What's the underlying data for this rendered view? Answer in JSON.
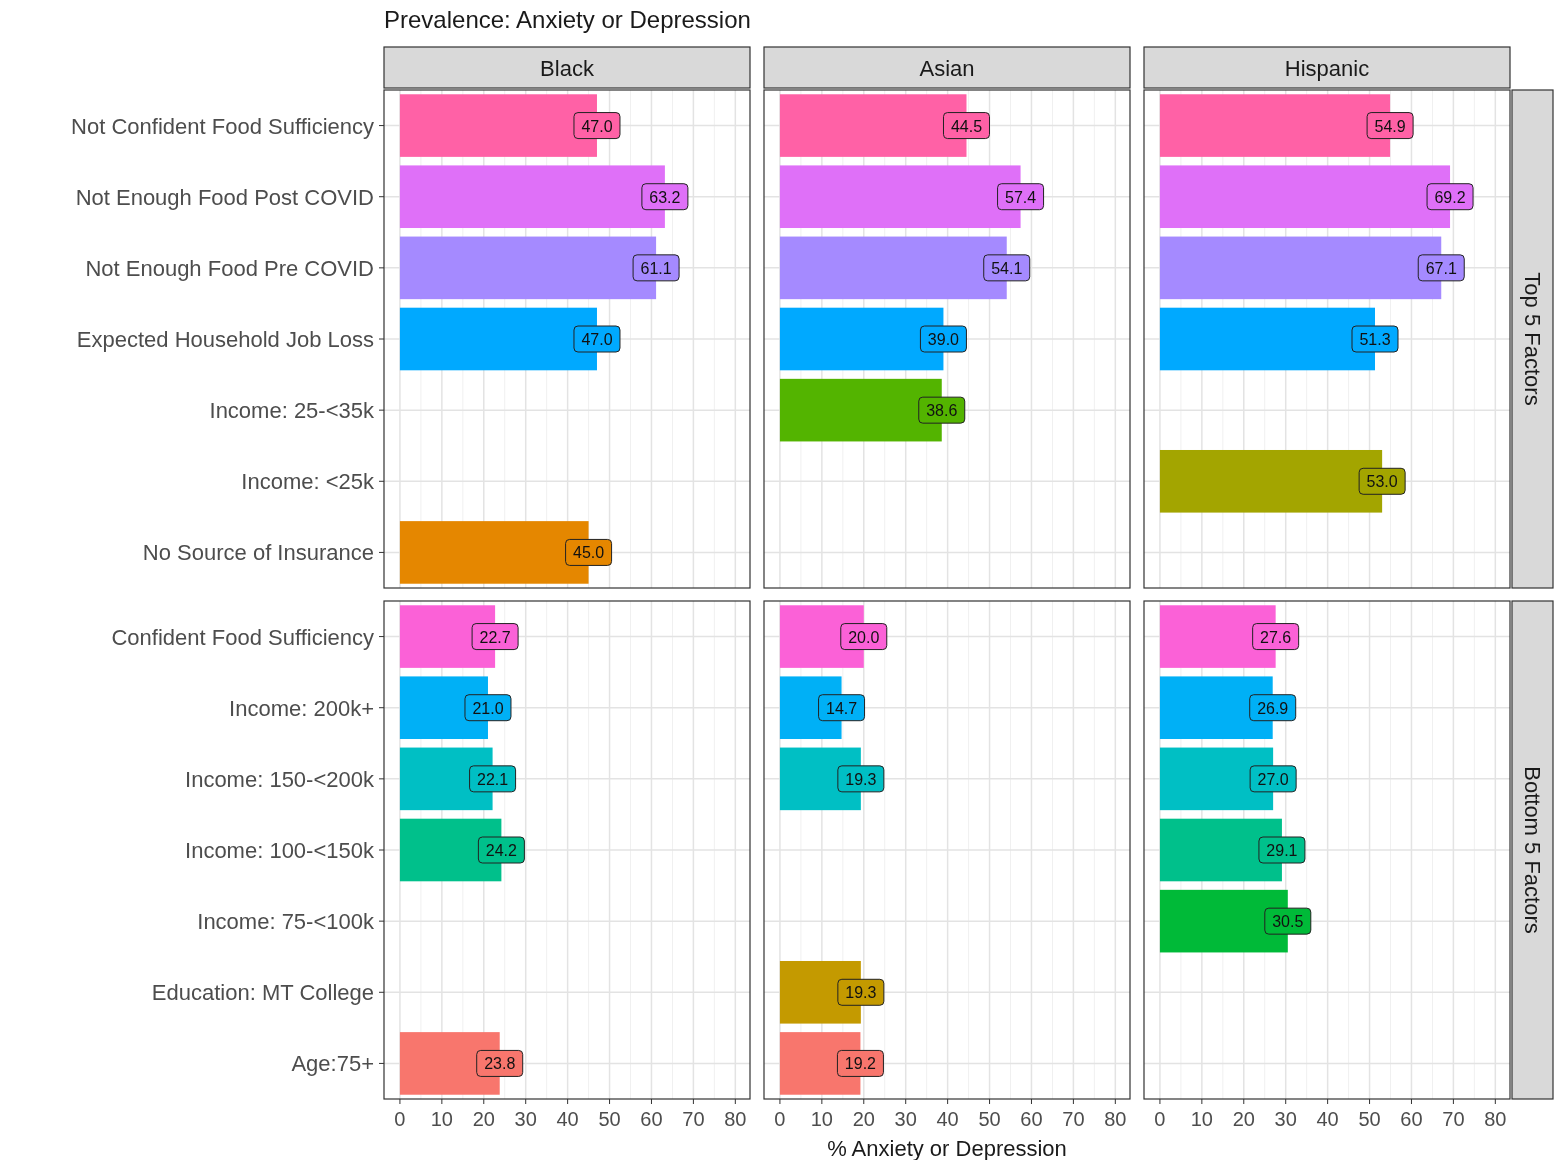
{
  "chart_data": [
    {
      "type": "bar",
      "orientation": "horizontal",
      "title": "Black",
      "annotations": [
        "Prevalence: Anxiety or Depression"
      ],
      "categories": [
        "Not Confident Food Sufficiency",
        "Not Enough Food Post COVID",
        "Not Enough Food Pre COVID",
        "Expected Household Job Loss",
        "Income: 25-<35k",
        "Income: <25k",
        "No Source of Insurance"
      ],
      "values": [
        47.0,
        63.2,
        61.1,
        47.0,
        null,
        null,
        45.0
      ],
      "value_labels": [
        "47.0",
        "63.2",
        "61.1",
        "47.0",
        null,
        null,
        "45.0"
      ],
      "colors": [
        "#ff61a6",
        "#df70f8",
        "#a58aff",
        "#00a9ff",
        null,
        null,
        "#e58700"
      ],
      "xlim": [
        -3.8,
        83.5
      ],
      "xticks": [
        0,
        10,
        20,
        30,
        40,
        50,
        60,
        70,
        80
      ],
      "grid": true,
      "tick_labels": "y"
    },
    {
      "type": "bar",
      "orientation": "horizontal",
      "title": "Asian",
      "categories": [
        null,
        null,
        null,
        null,
        null,
        null,
        null
      ],
      "values": [
        44.5,
        57.4,
        54.1,
        39.0,
        38.6,
        null,
        null
      ],
      "value_labels": [
        "44.5",
        "57.4",
        "54.1",
        "39.0",
        "38.6",
        null,
        null
      ],
      "colors": [
        "#ff61a6",
        "#df70f8",
        "#a58aff",
        "#00a9ff",
        "#53b400",
        null,
        null
      ],
      "xlim": [
        -3.8,
        83.5
      ],
      "xticks": [
        0,
        10,
        20,
        30,
        40,
        50,
        60,
        70,
        80
      ],
      "grid": true,
      "tick_labels": false
    },
    {
      "type": "bar",
      "orientation": "horizontal",
      "title": "Hispanic",
      "y2label": "Top 5 Factors",
      "categories": [
        null,
        null,
        null,
        null,
        null,
        null,
        null
      ],
      "values": [
        54.9,
        69.2,
        67.1,
        51.3,
        null,
        53.0,
        null
      ],
      "value_labels": [
        "54.9",
        "69.2",
        "67.1",
        "51.3",
        null,
        "53.0",
        null
      ],
      "colors": [
        "#ff61a6",
        "#df70f8",
        "#a58aff",
        "#00a9ff",
        null,
        "#a3a500",
        null
      ],
      "xlim": [
        -3.8,
        83.5
      ],
      "xticks": [
        0,
        10,
        20,
        30,
        40,
        50,
        60,
        70,
        80
      ],
      "grid": true,
      "tick_labels": false
    },
    {
      "type": "bar",
      "orientation": "horizontal",
      "categories": [
        "Confident Food Sufficiency",
        "Income: 200k+",
        "Income: 150-<200k",
        "Income: 100-<150k",
        "Income: 75-<100k",
        "Education: MT College",
        "Age:75+"
      ],
      "values": [
        22.7,
        21.0,
        22.1,
        24.2,
        null,
        null,
        23.8
      ],
      "value_labels": [
        "22.7",
        "21.0",
        "22.1",
        "24.2",
        null,
        null,
        "23.8"
      ],
      "colors": [
        "#fb61d7",
        "#00b0f6",
        "#00bfc4",
        "#00c08b",
        null,
        null,
        "#f8766d"
      ],
      "xlim": [
        -3.8,
        83.5
      ],
      "xticks": [
        0,
        10,
        20,
        30,
        40,
        50,
        60,
        70,
        80
      ],
      "grid": true
    },
    {
      "type": "bar",
      "orientation": "horizontal",
      "xlabel": "% Anxiety or Depression",
      "categories": [
        null,
        null,
        null,
        null,
        null,
        null,
        null
      ],
      "values": [
        20.0,
        14.7,
        19.3,
        null,
        null,
        19.3,
        19.2
      ],
      "value_labels": [
        "20.0",
        "14.7",
        "19.3",
        null,
        null,
        "19.3",
        "19.2"
      ],
      "colors": [
        "#fb61d7",
        "#00b0f6",
        "#00bfc4",
        null,
        null,
        "#c49a00",
        "#f8766d"
      ],
      "xlim": [
        -3.8,
        83.5
      ],
      "xticks": [
        0,
        10,
        20,
        30,
        40,
        50,
        60,
        70,
        80
      ],
      "grid": true,
      "tick_labels": "x"
    },
    {
      "type": "bar",
      "orientation": "horizontal",
      "y2label": "Bottom 5 Factors",
      "categories": [
        null,
        null,
        null,
        null,
        null,
        null,
        null
      ],
      "values": [
        27.6,
        26.9,
        27.0,
        29.1,
        30.5,
        null,
        null
      ],
      "value_labels": [
        "27.6",
        "26.9",
        "27.0",
        "29.1",
        "30.5",
        null,
        null
      ],
      "colors": [
        "#fb61d7",
        "#00b0f6",
        "#00bfc4",
        "#00c08b",
        "#00ba38",
        null,
        null
      ],
      "xlim": [
        -3.8,
        83.5
      ],
      "xticks": [
        0,
        10,
        20,
        30,
        40,
        50,
        60,
        70,
        80
      ],
      "grid": true,
      "tick_labels": "x"
    }
  ]
}
